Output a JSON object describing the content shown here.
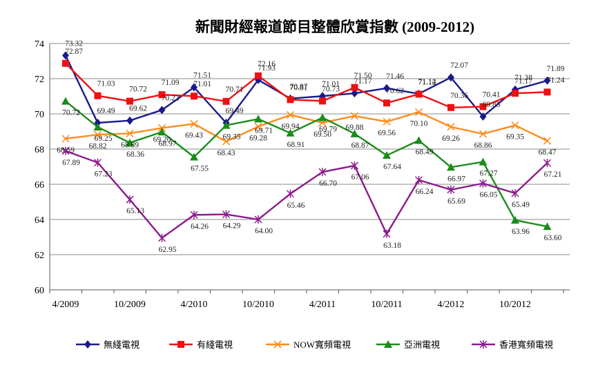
{
  "chart_data": {
    "type": "line",
    "title": "新聞財經報道節目整體欣賞指數 (2009-2012)",
    "xlabel": "",
    "ylabel": "",
    "ylim": [
      60,
      74
    ],
    "yticks": [
      60,
      62,
      64,
      66,
      68,
      70,
      72,
      74
    ],
    "grid": true,
    "legend_position": "bottom",
    "x_tick_labels": [
      "4/2009",
      "10/2009",
      "4/2010",
      "10/2010",
      "4/2011",
      "10/2011",
      "4/2012",
      "10/2012"
    ],
    "x_tick_indices": [
      0,
      2,
      4,
      6,
      8,
      10,
      12,
      14
    ],
    "categories": [
      "4/2009",
      "7/2009",
      "10/2009",
      "1/2010",
      "4/2010",
      "7/2010",
      "10/2010",
      "1/2011",
      "4/2011",
      "7/2011",
      "10/2011",
      "1/2012",
      "4/2012",
      "7/2012",
      "10/2012",
      "1/2013"
    ],
    "series": [
      {
        "name": "無綫電視",
        "color": "#1a1a8c",
        "marker": "diamond",
        "values": [
          73.32,
          69.49,
          69.62,
          70.22,
          71.51,
          69.49,
          71.93,
          70.87,
          71.01,
          71.17,
          71.46,
          71.14,
          72.07,
          69.85,
          71.38,
          71.89
        ],
        "labels": [
          "73.32",
          "69.49",
          "69.62",
          "70.22",
          "71.51",
          "69.49",
          "71.93",
          "70.87",
          "71.01",
          "71.17",
          "71.46",
          "71.14",
          "72.07",
          "69.85",
          "71.38",
          "71.89"
        ]
      },
      {
        "name": "有綫電視",
        "color": "#ee1111",
        "marker": "square",
        "values": [
          72.87,
          71.03,
          70.72,
          71.09,
          71.01,
          70.71,
          72.16,
          70.81,
          70.73,
          71.5,
          70.62,
          71.12,
          70.36,
          70.41,
          71.17,
          71.24
        ],
        "labels": [
          "72.87",
          "71.03",
          "70.72",
          "71.09",
          "71.01",
          "70.71",
          "72.16",
          "70.81",
          "70.73",
          "71.50",
          "70.62",
          "71.12",
          "70.36",
          "70.41",
          "71.17",
          "71.24"
        ]
      },
      {
        "name": "NOW寬頻電視",
        "color": "#ff8c1a",
        "marker": "x",
        "values": [
          68.59,
          68.82,
          68.89,
          69.2,
          69.43,
          68.43,
          69.28,
          69.94,
          69.5,
          69.88,
          69.56,
          70.1,
          69.26,
          68.86,
          69.35,
          68.47
        ],
        "labels": [
          "68.59",
          "68.82",
          "68.89",
          "69.20",
          "69.43",
          "68.43",
          "69.28",
          "69.94",
          "69.50",
          "69.88",
          "69.56",
          "70.10",
          "69.26",
          "68.86",
          "69.35",
          "68.47"
        ]
      },
      {
        "name": "亞洲電視",
        "color": "#1a8c1a",
        "marker": "triangle",
        "values": [
          70.72,
          69.25,
          68.36,
          68.97,
          67.55,
          69.35,
          69.71,
          68.91,
          69.79,
          68.87,
          67.64,
          68.49,
          66.97,
          67.27,
          63.96,
          63.6
        ],
        "labels": [
          "70.72",
          "69.25",
          "68.36",
          "68.97",
          "67.55",
          "69.35",
          "69.71",
          "68.91",
          "69.79",
          "68.87",
          "67.64",
          "68.49",
          "66.97",
          "67.27",
          "63.96",
          "63.60"
        ]
      },
      {
        "name": "香港寬頻電視",
        "color": "#8c1a8c",
        "marker": "asterisk",
        "values": [
          67.89,
          67.23,
          65.13,
          62.95,
          64.26,
          64.29,
          64.0,
          65.46,
          66.7,
          67.06,
          63.18,
          66.24,
          65.69,
          66.05,
          65.49,
          67.21
        ],
        "labels": [
          "67.89",
          "67.23",
          "65.13",
          "62.95",
          "64.26",
          "64.29",
          "64.00",
          "65.46",
          "66.70",
          "67.06",
          "63.18",
          "66.24",
          "65.69",
          "66.05",
          "65.49",
          "67.21"
        ]
      }
    ]
  }
}
